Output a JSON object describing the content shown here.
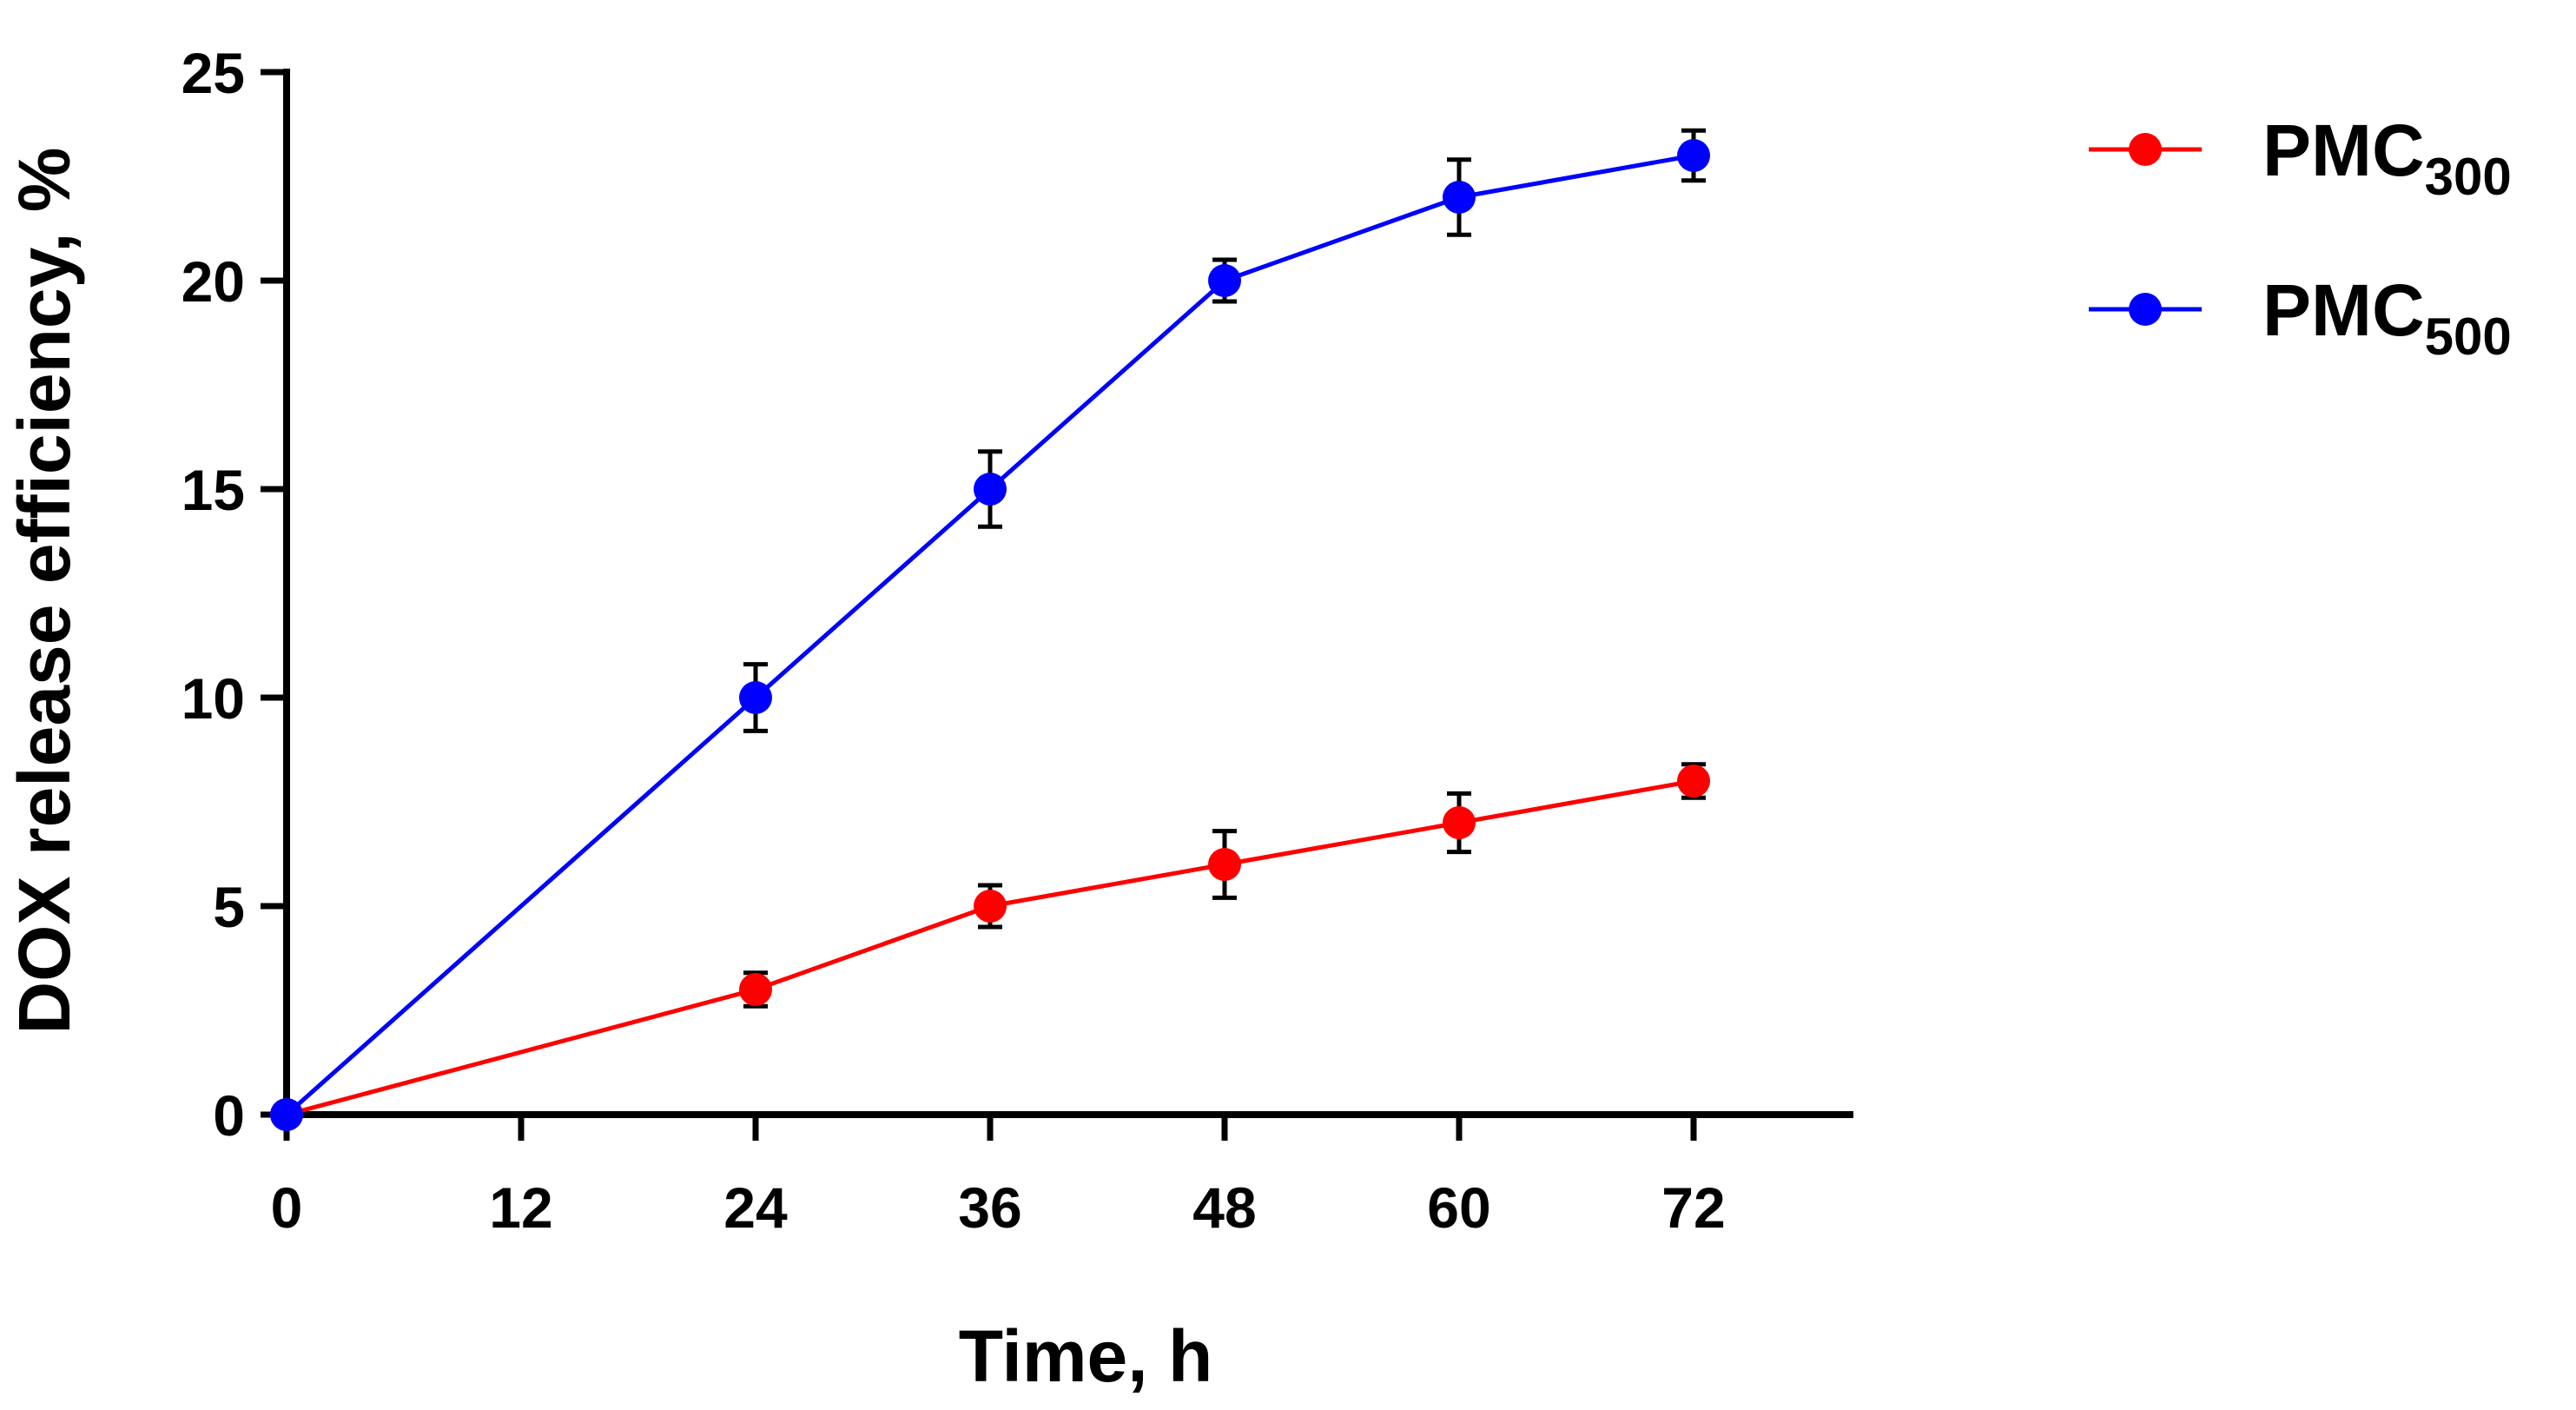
{
  "chart_data": {
    "type": "line",
    "title": "",
    "xlabel": "Time, h",
    "ylabel": "DOX release efficiency, %",
    "xlim": [
      0,
      80
    ],
    "ylim": [
      0,
      25
    ],
    "xticks": [
      "0",
      "12",
      "24",
      "36",
      "48",
      "60",
      "72"
    ],
    "yticks": [
      "0",
      "5",
      "10",
      "15",
      "20",
      "25"
    ],
    "x": [
      0,
      24,
      36,
      48,
      60,
      72
    ],
    "grid": false,
    "legend_position": "top-right",
    "series": [
      {
        "name": "PMC300",
        "label_main": "PMC",
        "label_sub": "300",
        "color": "#ff0000",
        "values": [
          0,
          3.0,
          5.0,
          6.0,
          7.0,
          8.0
        ],
        "errors": [
          0,
          0.4,
          0.5,
          0.8,
          0.7,
          0.4
        ]
      },
      {
        "name": "PMC500",
        "label_main": "PMC",
        "label_sub": "500",
        "color": "#0000ff",
        "values": [
          0,
          10.0,
          15.0,
          20.0,
          22.0,
          23.0
        ],
        "errors": [
          0,
          0.8,
          0.9,
          0.5,
          0.9,
          0.6
        ]
      }
    ]
  }
}
